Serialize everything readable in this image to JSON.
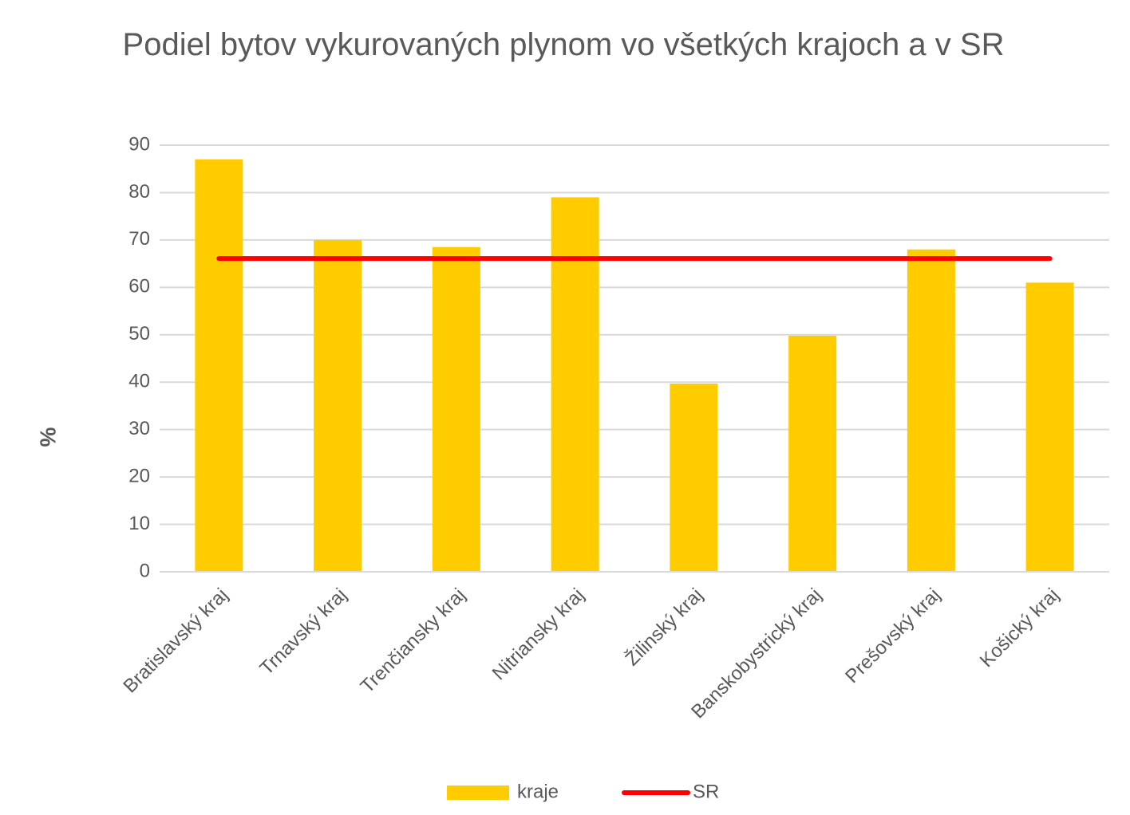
{
  "chart_data": {
    "type": "bar",
    "title": "Podiel bytov vykurovaných plynom vo všetkých krajoch a v SR",
    "y_label": "%",
    "categories": [
      "Bratislavský kraj",
      "Trnavský kraj",
      "Trenčiansky kraj",
      "Nitriansky kraj",
      "Žilinský kraj",
      "Banskobystrický kraj",
      "Prešovský kraj",
      "Košický kraj"
    ],
    "series": [
      {
        "name": "kraje",
        "type": "bar",
        "color": "#ffcc00",
        "values": [
          87,
          70,
          68.5,
          79,
          39.7,
          49.8,
          68,
          61
        ]
      },
      {
        "name": "SR",
        "type": "line",
        "color": "#ff0000",
        "values": [
          66.1,
          66.1,
          66.1,
          66.1,
          66.1,
          66.1,
          66.1,
          66.1
        ]
      }
    ],
    "ylim": [
      0,
      90
    ],
    "yticks": [
      0,
      10,
      20,
      30,
      40,
      50,
      60,
      70,
      80,
      90
    ],
    "grid": true,
    "legend": "bottom"
  }
}
